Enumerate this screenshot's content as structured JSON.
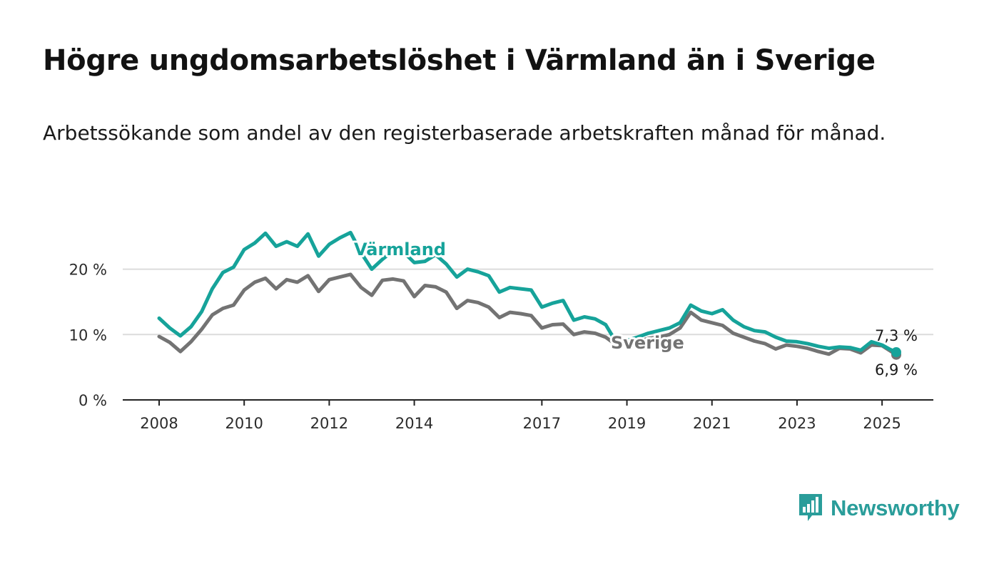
{
  "title": "Högre ungdomsarbetslöshet i Värmland än i Sverige",
  "subtitle": "Arbetssökande som andel av den registerbaserade arbetskraften månad för månad.",
  "brand": {
    "name": "Newsworthy",
    "color": "#2a9d9a",
    "icon": "bar-chart-speech-bubble-icon"
  },
  "chart_data": {
    "type": "line",
    "ylim": [
      0,
      25
    ],
    "y_ticks": [
      0,
      10,
      20
    ],
    "y_tick_labels": [
      "0 %",
      "10 %",
      "20 %"
    ],
    "x_range": [
      "2008-01",
      "2025-05"
    ],
    "x_ticks": [
      2008,
      2010,
      2012,
      2014,
      2017,
      2019,
      2021,
      2023,
      2025
    ],
    "x_tick_labels": [
      "2008",
      "2010",
      "2012",
      "2014",
      "2017",
      "2019",
      "2021",
      "2023",
      "2025"
    ],
    "grid": "horizontal",
    "series": [
      {
        "name": "Värmland",
        "color": "#16a39a",
        "end_label": "7,3 %",
        "points": [
          [
            "2008-01",
            12.5
          ],
          [
            "2008-04",
            11.0
          ],
          [
            "2008-07",
            9.8
          ],
          [
            "2008-10",
            11.2
          ],
          [
            "2009-01",
            13.5
          ],
          [
            "2009-04",
            17.0
          ],
          [
            "2009-07",
            19.5
          ],
          [
            "2009-10",
            20.3
          ],
          [
            "2010-01",
            23.0
          ],
          [
            "2010-04",
            24.0
          ],
          [
            "2010-07",
            25.5
          ],
          [
            "2010-10",
            23.5
          ],
          [
            "2011-01",
            24.2
          ],
          [
            "2011-04",
            23.5
          ],
          [
            "2011-07",
            25.4
          ],
          [
            "2011-10",
            22.0
          ],
          [
            "2012-01",
            23.8
          ],
          [
            "2012-04",
            24.8
          ],
          [
            "2012-07",
            25.6
          ],
          [
            "2012-10",
            22.5
          ],
          [
            "2013-01",
            20.0
          ],
          [
            "2013-04",
            21.5
          ],
          [
            "2013-07",
            22.8
          ],
          [
            "2013-10",
            22.6
          ],
          [
            "2014-01",
            21.0
          ],
          [
            "2014-04",
            21.2
          ],
          [
            "2014-07",
            22.2
          ],
          [
            "2014-10",
            20.8
          ],
          [
            "2015-01",
            18.8
          ],
          [
            "2015-04",
            20.0
          ],
          [
            "2015-07",
            19.6
          ],
          [
            "2015-10",
            19.0
          ],
          [
            "2016-01",
            16.5
          ],
          [
            "2016-04",
            17.2
          ],
          [
            "2016-07",
            17.0
          ],
          [
            "2016-10",
            16.8
          ],
          [
            "2017-01",
            14.2
          ],
          [
            "2017-04",
            14.8
          ],
          [
            "2017-07",
            15.2
          ],
          [
            "2017-10",
            12.2
          ],
          [
            "2018-01",
            12.7
          ],
          [
            "2018-04",
            12.4
          ],
          [
            "2018-07",
            11.5
          ],
          [
            "2018-10",
            8.8
          ],
          [
            "2019-01",
            9.1
          ],
          [
            "2019-04",
            9.6
          ],
          [
            "2019-07",
            10.2
          ],
          [
            "2019-10",
            10.6
          ],
          [
            "2020-01",
            11.0
          ],
          [
            "2020-04",
            11.8
          ],
          [
            "2020-07",
            14.5
          ],
          [
            "2020-10",
            13.6
          ],
          [
            "2021-01",
            13.2
          ],
          [
            "2021-04",
            13.8
          ],
          [
            "2021-07",
            12.2
          ],
          [
            "2021-10",
            11.2
          ],
          [
            "2022-01",
            10.6
          ],
          [
            "2022-04",
            10.4
          ],
          [
            "2022-07",
            9.6
          ],
          [
            "2022-10",
            9.0
          ],
          [
            "2023-01",
            8.9
          ],
          [
            "2023-04",
            8.6
          ],
          [
            "2023-07",
            8.2
          ],
          [
            "2023-10",
            7.9
          ],
          [
            "2024-01",
            8.1
          ],
          [
            "2024-04",
            8.0
          ],
          [
            "2024-07",
            7.6
          ],
          [
            "2024-10",
            8.9
          ],
          [
            "2025-01",
            8.4
          ],
          [
            "2025-03",
            7.8
          ],
          [
            "2025-05",
            7.3
          ]
        ]
      },
      {
        "name": "Sverige",
        "color": "#737373",
        "end_label": "6,9 %",
        "points": [
          [
            "2008-01",
            9.7
          ],
          [
            "2008-04",
            8.8
          ],
          [
            "2008-07",
            7.4
          ],
          [
            "2008-10",
            8.9
          ],
          [
            "2009-01",
            10.8
          ],
          [
            "2009-04",
            13.0
          ],
          [
            "2009-07",
            14.0
          ],
          [
            "2009-10",
            14.5
          ],
          [
            "2010-01",
            16.8
          ],
          [
            "2010-04",
            18.0
          ],
          [
            "2010-07",
            18.6
          ],
          [
            "2010-10",
            17.0
          ],
          [
            "2011-01",
            18.4
          ],
          [
            "2011-04",
            18.0
          ],
          [
            "2011-07",
            19.0
          ],
          [
            "2011-10",
            16.6
          ],
          [
            "2012-01",
            18.4
          ],
          [
            "2012-04",
            18.8
          ],
          [
            "2012-07",
            19.2
          ],
          [
            "2012-10",
            17.2
          ],
          [
            "2013-01",
            16.0
          ],
          [
            "2013-04",
            18.3
          ],
          [
            "2013-07",
            18.5
          ],
          [
            "2013-10",
            18.2
          ],
          [
            "2014-01",
            15.8
          ],
          [
            "2014-04",
            17.5
          ],
          [
            "2014-07",
            17.3
          ],
          [
            "2014-10",
            16.5
          ],
          [
            "2015-01",
            14.0
          ],
          [
            "2015-04",
            15.2
          ],
          [
            "2015-07",
            14.9
          ],
          [
            "2015-10",
            14.2
          ],
          [
            "2016-01",
            12.6
          ],
          [
            "2016-04",
            13.4
          ],
          [
            "2016-07",
            13.2
          ],
          [
            "2016-10",
            12.9
          ],
          [
            "2017-01",
            11.0
          ],
          [
            "2017-04",
            11.5
          ],
          [
            "2017-07",
            11.6
          ],
          [
            "2017-10",
            10.0
          ],
          [
            "2018-01",
            10.4
          ],
          [
            "2018-04",
            10.2
          ],
          [
            "2018-07",
            9.6
          ],
          [
            "2018-10",
            8.4
          ],
          [
            "2019-01",
            8.8
          ],
          [
            "2019-04",
            8.9
          ],
          [
            "2019-07",
            9.4
          ],
          [
            "2019-10",
            9.6
          ],
          [
            "2020-01",
            10.0
          ],
          [
            "2020-04",
            11.0
          ],
          [
            "2020-07",
            13.4
          ],
          [
            "2020-10",
            12.2
          ],
          [
            "2021-01",
            11.8
          ],
          [
            "2021-04",
            11.4
          ],
          [
            "2021-07",
            10.2
          ],
          [
            "2021-10",
            9.6
          ],
          [
            "2022-01",
            9.0
          ],
          [
            "2022-04",
            8.6
          ],
          [
            "2022-07",
            7.8
          ],
          [
            "2022-10",
            8.4
          ],
          [
            "2023-01",
            8.2
          ],
          [
            "2023-04",
            7.9
          ],
          [
            "2023-07",
            7.4
          ],
          [
            "2023-10",
            7.0
          ],
          [
            "2024-01",
            7.9
          ],
          [
            "2024-04",
            7.8
          ],
          [
            "2024-07",
            7.2
          ],
          [
            "2024-10",
            8.4
          ],
          [
            "2025-01",
            8.3
          ],
          [
            "2025-03",
            7.6
          ],
          [
            "2025-05",
            6.9
          ]
        ]
      }
    ]
  }
}
